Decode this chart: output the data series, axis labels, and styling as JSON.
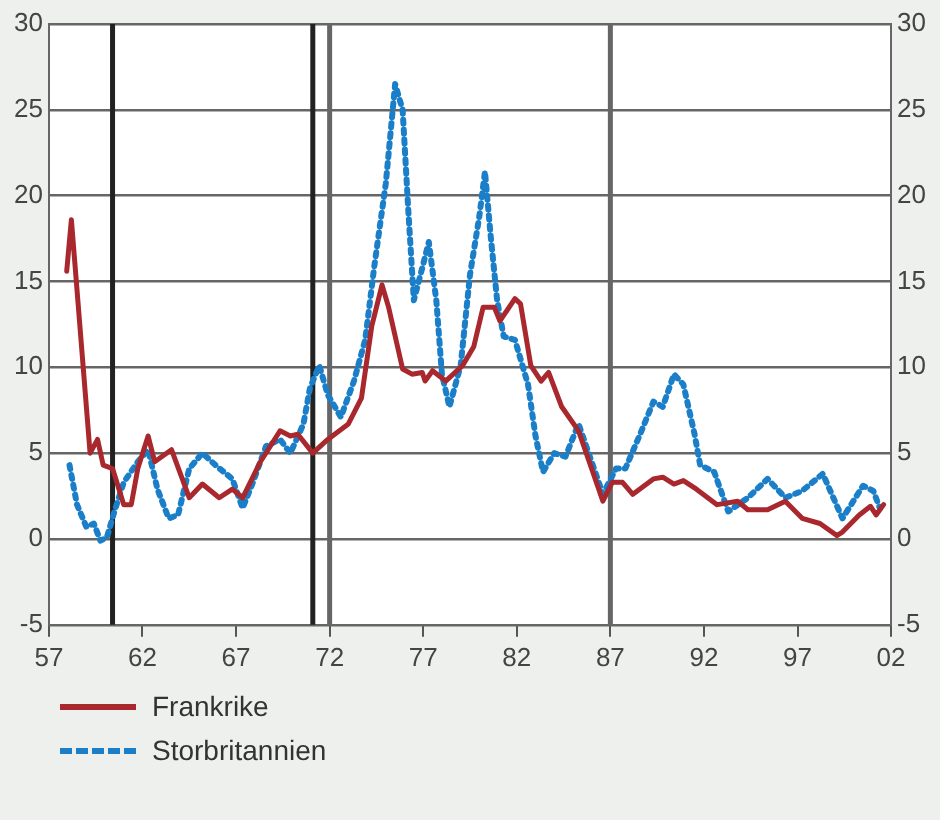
{
  "chart_data": {
    "type": "line",
    "xlim": [
      1957,
      2002
    ],
    "xticks": [
      {
        "value": 1957,
        "label": "57"
      },
      {
        "value": 1962,
        "label": "62"
      },
      {
        "value": 1967,
        "label": "67"
      },
      {
        "value": 1972,
        "label": "72"
      },
      {
        "value": 1977,
        "label": "77"
      },
      {
        "value": 1982,
        "label": "82"
      },
      {
        "value": 1987,
        "label": "87"
      },
      {
        "value": 1992,
        "label": "92"
      },
      {
        "value": 1997,
        "label": "97"
      },
      {
        "value": 2002,
        "label": "02"
      }
    ],
    "ylim": [
      -5,
      30
    ],
    "yticks": [
      -5,
      0,
      5,
      10,
      15,
      20,
      25,
      30
    ],
    "y2lim": [
      -5,
      30
    ],
    "y2ticks": [
      -5,
      0,
      5,
      10,
      15,
      20,
      25,
      30
    ],
    "grid": "y",
    "legend": "bottom",
    "ref_lines": [
      {
        "axis": "x",
        "value": 1960.4,
        "color": "#222222"
      },
      {
        "axis": "x",
        "value": 1971.1,
        "color": "#222222"
      },
      {
        "axis": "x",
        "value": 1972,
        "color": "#666666"
      },
      {
        "axis": "x",
        "value": 1987,
        "color": "#666666"
      }
    ],
    "series": [
      {
        "name": "Frankrike",
        "color": "#a8282e",
        "line_style": "solid",
        "x": [
          1957.95,
          1958.2,
          1959.2,
          1959.6,
          1959.9,
          1960.4,
          1961.0,
          1961.4,
          1961.75,
          1962.3,
          1962.65,
          1963.55,
          1964.5,
          1965.2,
          1966.1,
          1966.8,
          1967.35,
          1968.3,
          1969.35,
          1969.9,
          1970.3,
          1971.1,
          1971.9,
          1973.0,
          1973.7,
          1974.25,
          1974.8,
          1975.15,
          1975.9,
          1976.4,
          1976.95,
          1977.1,
          1977.5,
          1978.2,
          1979.1,
          1979.7,
          1980.2,
          1980.8,
          1981.1,
          1981.9,
          1982.2,
          1982.75,
          1983.3,
          1983.7,
          1984.4,
          1985.3,
          1986.0,
          1986.6,
          1987.1,
          1987.65,
          1988.2,
          1989.3,
          1989.8,
          1990.4,
          1990.9,
          1991.6,
          1992.7,
          1993.8,
          1994.35,
          1995.4,
          1996.35,
          1997.25,
          1998.2,
          1999.1,
          1999.4,
          2000.3,
          2000.9,
          2001.2,
          2001.6
        ],
        "values": [
          15.6,
          18.6,
          5.0,
          5.8,
          4.3,
          4.1,
          2.0,
          2.0,
          4.1,
          6.0,
          4.5,
          5.2,
          2.4,
          3.2,
          2.4,
          2.9,
          2.4,
          4.5,
          6.3,
          6.0,
          6.1,
          5.0,
          5.8,
          6.7,
          8.2,
          12.4,
          14.8,
          13.5,
          9.9,
          9.6,
          9.7,
          9.2,
          9.8,
          9.2,
          10.1,
          11.2,
          13.5,
          13.5,
          12.7,
          14.0,
          13.7,
          10.1,
          9.2,
          9.7,
          7.7,
          6.3,
          4.1,
          2.2,
          3.3,
          3.3,
          2.6,
          3.5,
          3.6,
          3.2,
          3.4,
          2.9,
          2.0,
          2.2,
          1.7,
          1.7,
          2.2,
          1.2,
          0.9,
          0.2,
          0.4,
          1.4,
          1.9,
          1.4,
          2.0
        ]
      },
      {
        "name": "Storbritannien",
        "color": "#1a7fc8",
        "line_style": "dotted",
        "x": [
          1958.1,
          1958.5,
          1959.0,
          1959.4,
          1959.75,
          1960.1,
          1960.5,
          1961.0,
          1961.75,
          1962.3,
          1962.8,
          1963.4,
          1963.9,
          1964.5,
          1965.2,
          1965.9,
          1966.8,
          1967.35,
          1967.9,
          1968.6,
          1969.35,
          1969.9,
          1970.6,
          1970.95,
          1971.45,
          1971.9,
          1972.6,
          1973.3,
          1973.9,
          1974.4,
          1975.0,
          1975.5,
          1975.9,
          1976.2,
          1976.5,
          1976.95,
          1977.3,
          1977.7,
          1978.0,
          1978.4,
          1979.0,
          1979.5,
          1980.0,
          1980.3,
          1980.6,
          1980.95,
          1981.3,
          1981.9,
          1982.6,
          1983.0,
          1983.4,
          1984.0,
          1984.6,
          1985.3,
          1986.0,
          1986.6,
          1987.3,
          1987.8,
          1988.55,
          1989.3,
          1989.8,
          1990.4,
          1990.9,
          1991.5,
          1991.8,
          1992.55,
          1993.3,
          1994.35,
          1995.4,
          1996.35,
          1997.25,
          1998.35,
          1999.4,
          2000.5,
          2001.05,
          2001.4
        ],
        "values": [
          4.3,
          2.0,
          0.7,
          0.9,
          -0.1,
          0.1,
          1.6,
          3.3,
          4.5,
          5.2,
          2.9,
          1.2,
          1.4,
          4.1,
          5.0,
          4.3,
          3.5,
          1.8,
          3.3,
          5.4,
          5.8,
          5.0,
          6.7,
          8.8,
          10.1,
          8.4,
          7.1,
          9.2,
          11.6,
          16.0,
          20.7,
          26.5,
          25.0,
          19.2,
          13.9,
          15.8,
          17.3,
          13.9,
          9.6,
          7.7,
          10.1,
          15.4,
          18.8,
          21.4,
          17.7,
          13.9,
          11.8,
          11.6,
          9.0,
          6.0,
          3.9,
          5.0,
          4.8,
          6.7,
          4.5,
          2.6,
          4.1,
          4.1,
          6.0,
          8.0,
          7.7,
          9.6,
          9.0,
          6.1,
          4.3,
          3.9,
          1.6,
          2.4,
          3.5,
          2.4,
          2.8,
          3.8,
          1.2,
          3.1,
          2.8,
          1.8
        ]
      }
    ]
  }
}
